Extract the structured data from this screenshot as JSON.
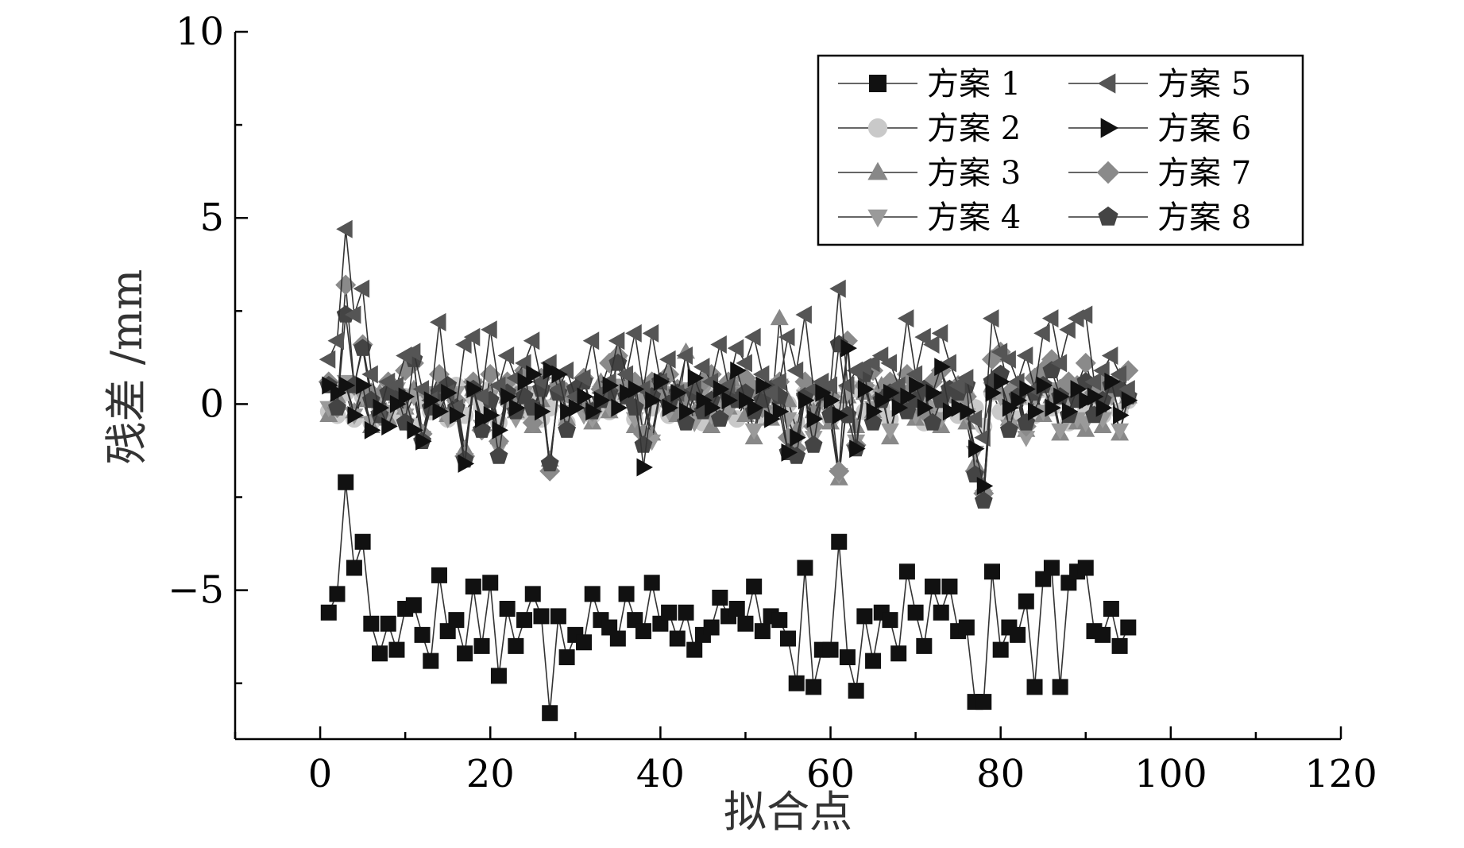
{
  "chart_data": {
    "type": "scatter",
    "title": "",
    "xlabel": "拟合点",
    "ylabel": "残差 /mm",
    "xlim": [
      -10,
      120
    ],
    "ylim": [
      -9,
      10
    ],
    "xticks": [
      0,
      20,
      40,
      60,
      80,
      100,
      120
    ],
    "yticks": [
      -5,
      0,
      5,
      10
    ],
    "xtick_labels": [
      "0",
      "20",
      "40",
      "60",
      "80",
      "100",
      "120"
    ],
    "ytick_labels": [
      "−5",
      "0",
      "5",
      "10"
    ],
    "grid": false,
    "legend_position": "top-right",
    "series": [
      {
        "name": "方案 1",
        "marker": "square",
        "color": "#111111",
        "values": [
          -5.6,
          -5.1,
          -2.1,
          -4.4,
          -3.7,
          -5.9,
          -6.7,
          -5.9,
          -6.6,
          -5.5,
          -5.4,
          -6.2,
          -6.9,
          -4.6,
          -6.1,
          -5.8,
          -6.7,
          -4.9,
          -6.5,
          -4.8,
          -7.3,
          -5.5,
          -6.5,
          -5.8,
          -5.1,
          -5.7,
          -8.3,
          -5.7,
          -6.8,
          -6.2,
          -6.4,
          -5.1,
          -5.8,
          -6.0,
          -6.3,
          -5.1,
          -5.8,
          -6.1,
          -4.8,
          -5.9,
          -5.6,
          -6.3,
          -5.6,
          -6.6,
          -6.2,
          -6.0,
          -5.2,
          -5.7,
          -5.5,
          -5.9,
          -4.9,
          -6.1,
          -5.7,
          -5.8,
          -6.3,
          -7.5,
          -4.4,
          -7.6,
          -6.6,
          -6.6,
          -3.7,
          -6.8,
          -7.7,
          -5.7,
          -6.9,
          -5.6,
          -5.8,
          -6.7,
          -4.5,
          -5.6,
          -6.5,
          -4.9,
          -5.6,
          -4.9,
          -6.1,
          -6.0,
          -8.0,
          -8.0,
          -4.5,
          -6.6,
          -6.0,
          -6.2,
          -5.3,
          -7.6,
          -4.7,
          -4.4,
          -7.6,
          -4.8,
          -4.5,
          -4.4,
          -6.1,
          -6.2,
          -5.5,
          -6.5,
          -6.0
        ]
      },
      {
        "name": "方案 2",
        "marker": "circle",
        "color": "#c9c9c9",
        "values": [
          -0.2,
          -0.3,
          0.3,
          -0.4,
          0.2,
          -0.5,
          -0.1,
          0.4,
          -0.3,
          0.2,
          -0.6,
          0.1,
          -0.2,
          0.3,
          -0.4,
          0.5,
          -0.3,
          0.2,
          -0.1,
          0.4,
          -0.5,
          0.1,
          0.3,
          -0.2,
          0.2,
          -0.4,
          -0.1,
          0.3,
          -0.5,
          0.2,
          0.0,
          -0.3,
          0.4,
          -0.2,
          0.1,
          0.3,
          -0.4,
          0.2,
          -0.1,
          0.5,
          -0.3,
          0.1,
          -0.2,
          0.4,
          -0.5,
          0.2,
          -0.1,
          0.3,
          -0.4,
          0.1,
          0.2,
          -0.3,
          0.4,
          -0.2,
          0.0,
          -0.5,
          0.3,
          -0.1,
          0.2,
          -0.4,
          0.1,
          -0.3,
          0.4,
          -0.2,
          0.3,
          -0.1,
          -0.4,
          0.2,
          0.0,
          0.3,
          -0.5,
          0.1,
          -0.2,
          0.4,
          -0.3,
          0.2,
          -0.1,
          -0.6,
          0.3,
          -0.2,
          0.1,
          -0.4,
          0.2,
          -0.3,
          0.4,
          -0.1,
          0.2,
          -0.5,
          0.3,
          -0.2,
          0.1,
          -0.3,
          0.4,
          -0.2,
          0.1
        ]
      },
      {
        "name": "方案 3",
        "marker": "triangle-up",
        "color": "#888888",
        "values": [
          -0.3,
          0.2,
          0.5,
          -0.2,
          0.1,
          -0.6,
          0.3,
          -0.4,
          0.2,
          -0.1,
          0.4,
          -0.8,
          0.1,
          0.5,
          -0.3,
          0.2,
          -1.2,
          0.4,
          -0.5,
          0.3,
          -0.9,
          0.2,
          -0.2,
          0.4,
          -0.6,
          0.1,
          -1.5,
          0.3,
          -0.4,
          0.2,
          0.0,
          -0.5,
          0.6,
          -0.2,
          1.4,
          0.3,
          -0.6,
          0.2,
          -0.8,
          0.4,
          0.1,
          -0.3,
          1.4,
          -0.2,
          0.2,
          -0.6,
          0.3,
          -0.1,
          0.4,
          -0.3,
          -0.9,
          0.2,
          -0.4,
          2.3,
          0.1,
          -0.7,
          0.4,
          -0.2,
          0.3,
          -0.5,
          -2.0,
          0.2,
          -0.6,
          0.3,
          -0.2,
          0.5,
          -0.9,
          0.3,
          0.1,
          -0.4,
          0.2,
          -0.2,
          -0.6,
          0.4,
          0.2,
          -0.5,
          -1.6,
          -2.2,
          0.5,
          0.3,
          -0.4,
          0.2,
          -0.7,
          0.4,
          -0.3,
          0.2,
          -0.8,
          0.3,
          -0.5,
          -0.7,
          0.2,
          -0.6,
          0.4,
          -0.8,
          0.2
        ]
      },
      {
        "name": "方案 4",
        "marker": "triangle-down",
        "color": "#9a9a9a",
        "values": [
          -0.1,
          0.3,
          0.6,
          -0.3,
          0.2,
          -0.5,
          0.1,
          -0.2,
          0.4,
          -0.3,
          0.2,
          -0.9,
          0.3,
          0.1,
          -0.4,
          0.3,
          -1.5,
          0.5,
          -0.6,
          0.2,
          -1.2,
          0.1,
          -0.4,
          0.3,
          -0.3,
          0.2,
          -1.7,
          0.4,
          -0.2,
          0.1,
          -0.3,
          -0.4,
          0.3,
          -0.1,
          0.5,
          0.2,
          -0.4,
          0.1,
          -1.0,
          0.3,
          -0.2,
          0.1,
          0.4,
          -0.5,
          0.3,
          -0.3,
          0.1,
          -0.2,
          0.3,
          0.1,
          -0.7,
          0.3,
          -0.2,
          0.5,
          -0.4,
          -1.0,
          0.2,
          -0.9,
          0.1,
          -0.3,
          -1.9,
          0.3,
          -1.0,
          0.4,
          -0.1,
          0.2,
          -0.7,
          0.1,
          0.3,
          -0.3,
          0.2,
          -0.1,
          -0.4,
          0.3,
          0.1,
          -0.3,
          -1.3,
          -2.5,
          0.4,
          0.2,
          -0.6,
          0.1,
          -0.9,
          0.2,
          -0.2,
          0.4,
          -0.7,
          0.1,
          -0.4,
          -0.5,
          0.3,
          -0.4,
          0.2,
          -0.7,
          0.1
        ]
      },
      {
        "name": "方案 5",
        "marker": "triangle-left",
        "color": "#555555",
        "values": [
          1.2,
          1.7,
          4.7,
          2.4,
          3.1,
          0.8,
          -0.2,
          0.6,
          0.5,
          1.3,
          1.4,
          0.4,
          0.1,
          2.2,
          0.3,
          -0.1,
          1.6,
          1.8,
          0.2,
          2.0,
          0.5,
          1.3,
          0.7,
          1.1,
          1.7,
          0.6,
          1.1,
          0.4,
          0.9,
          0.2,
          0.7,
          1.7,
          0.3,
          0.6,
          1.7,
          0.8,
          1.9,
          0.4,
          1.9,
          0.6,
          1.2,
          0.3,
          1.3,
          0.4,
          1.0,
          0.6,
          1.6,
          0.5,
          1.5,
          1.1,
          1.8,
          0.8,
          0.3,
          0.6,
          1.8,
          0.9,
          2.4,
          0.4,
          0.6,
          0.5,
          3.1,
          0.5,
          0.9,
          1.0,
          1.1,
          1.3,
          1.1,
          0.5,
          2.3,
          0.8,
          1.8,
          1.6,
          1.9,
          1.1,
          0.5,
          0.7,
          -0.4,
          -0.9,
          2.3,
          1.4,
          1.2,
          0.6,
          1.3,
          0.4,
          1.9,
          2.3,
          1.1,
          2.0,
          2.3,
          2.4,
          0.6,
          0.9,
          1.3,
          0.8,
          0.4
        ]
      },
      {
        "name": "方案 6",
        "marker": "triangle-right",
        "color": "#111111",
        "values": [
          0.5,
          0.3,
          0.5,
          -0.3,
          0.5,
          -0.7,
          -0.1,
          -0.6,
          0.0,
          0.2,
          -0.7,
          -1.0,
          0.1,
          -0.2,
          0.3,
          -0.3,
          -1.6,
          0.4,
          -0.4,
          -0.3,
          -0.7,
          0.2,
          -0.1,
          0.6,
          0.8,
          -0.2,
          0.9,
          0.8,
          -0.2,
          -0.1,
          0.2,
          -0.2,
          0.1,
          0.5,
          -0.1,
          0.3,
          0.4,
          -1.7,
          0.1,
          0.6,
          -0.1,
          0.3,
          -0.2,
          0.7,
          0.1,
          -0.1,
          0.4,
          0.1,
          0.9,
          0.1,
          -0.1,
          0.5,
          -0.4,
          -0.2,
          -1.3,
          -0.9,
          0.1,
          -0.4,
          0.3,
          0.1,
          -0.3,
          1.5,
          -1.2,
          0.4,
          -0.2,
          0.1,
          0.3,
          -0.1,
          0.2,
          0.5,
          -0.1,
          0.3,
          1.0,
          -0.2,
          -0.1,
          -0.2,
          -1.2,
          -2.2,
          0.3,
          0.6,
          -0.1,
          0.1,
          0.4,
          -0.2,
          0.5,
          -0.1,
          0.2,
          -0.2,
          0.4,
          0.1,
          0.2,
          -0.1,
          0.6,
          -0.3,
          0.1
        ]
      },
      {
        "name": "方案 7",
        "marker": "diamond",
        "color": "#8a8a8a",
        "values": [
          0.6,
          -0.1,
          3.2,
          0.5,
          1.6,
          0.3,
          -0.3,
          0.6,
          0.2,
          0.9,
          1.1,
          -0.8,
          0.2,
          0.8,
          0.4,
          0.1,
          -1.4,
          0.6,
          -0.7,
          0.8,
          -1.0,
          0.6,
          0.2,
          0.9,
          -0.5,
          0.7,
          -1.8,
          0.5,
          0.3,
          0.2,
          0.7,
          -0.2,
          0.4,
          1.1,
          1.3,
          0.4,
          0.6,
          -0.8,
          0.6,
          0.3,
          0.8,
          0.4,
          0.2,
          0.5,
          0.6,
          0.8,
          0.3,
          0.6,
          0.2,
          0.7,
          0.4,
          -0.1,
          0.3,
          0.6,
          -0.9,
          -1.2,
          0.6,
          -0.6,
          0.3,
          0.2,
          -1.8,
          1.7,
          -1.1,
          0.5,
          0.9,
          0.2,
          0.6,
          0.4,
          0.8,
          0.5,
          -0.2,
          0.6,
          0.9,
          0.3,
          0.5,
          0.2,
          -1.8,
          -2.4,
          1.2,
          1.4,
          0.3,
          0.5,
          -0.6,
          0.7,
          0.9,
          1.2,
          0.4,
          0.6,
          0.5,
          1.1,
          0.3,
          0.6,
          0.4,
          0.7,
          0.9
        ]
      },
      {
        "name": "方案 8",
        "marker": "pentagon",
        "color": "#444444",
        "values": [
          0.5,
          -0.1,
          2.4,
          0.5,
          1.5,
          0.1,
          -0.3,
          0.3,
          0.3,
          -0.5,
          1.2,
          -1.0,
          -0.1,
          0.3,
          0.5,
          -0.1,
          -1.5,
          0.4,
          -0.7,
          0.1,
          -1.4,
          0.3,
          -0.2,
          0.2,
          -0.1,
          0.4,
          -1.6,
          0.3,
          -0.7,
          0.4,
          0.6,
          -0.2,
          0.1,
          0.3,
          1.1,
          0.2,
          -0.1,
          -1.1,
          0.2,
          0.6,
          0.0,
          0.3,
          -0.5,
          0.3,
          -0.2,
          0.1,
          -0.4,
          0.2,
          0.1,
          0.3,
          -0.2,
          0.1,
          0.4,
          0.2,
          -1.3,
          -1.4,
          0.2,
          -1.1,
          0.3,
          -0.3,
          1.6,
          -0.3,
          -1.2,
          0.8,
          -0.5,
          0.1,
          0.3,
          0.2,
          -0.2,
          0.1,
          0.4,
          -0.5,
          0.1,
          0.4,
          0.3,
          0.5,
          -1.9,
          -2.6,
          0.6,
          0.8,
          -0.7,
          0.2,
          -0.5,
          0.3,
          0.5,
          0.9,
          0.2,
          -0.3,
          0.1,
          0.6,
          -0.3,
          0.1,
          0.5,
          0.4,
          0.2
        ]
      }
    ]
  }
}
